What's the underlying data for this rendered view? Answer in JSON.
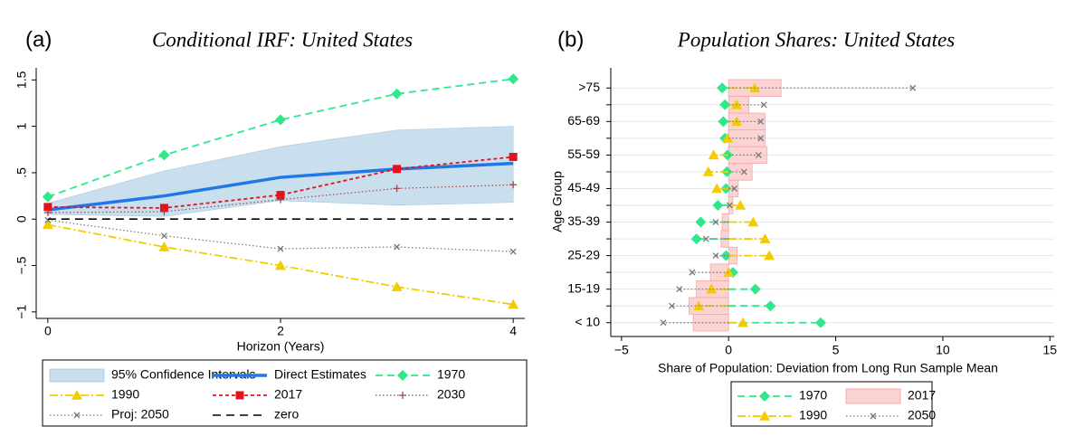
{
  "chart_data": [
    {
      "type": "line",
      "panel": "(a)",
      "title": "Conditional IRF: United States",
      "xlabel": "Horizon (Years)",
      "x": [
        0,
        1,
        2,
        3,
        4
      ],
      "xlim": [
        -0.1,
        4.1
      ],
      "xticks": [
        0,
        2,
        4
      ],
      "ylim": [
        -1.07,
        1.63
      ],
      "yticks": [
        {
          "value": -1,
          "label": "−1"
        },
        {
          "value": -0.5,
          "label": "−.5"
        },
        0,
        {
          "value": 0.5,
          "label": ".5"
        },
        1,
        1.5
      ],
      "band": {
        "name": "95% Confidence Intervals",
        "color": "#c9dfee",
        "lower": [
          0.05,
          0.03,
          0.2,
          0.15,
          0.18
        ],
        "upper": [
          0.17,
          0.52,
          0.78,
          0.96,
          1.0
        ]
      },
      "series": [
        {
          "name": "Direct Estimates",
          "color": "#1f77e8",
          "dash": "solid",
          "marker": "none",
          "values": [
            0.1,
            0.25,
            0.45,
            0.54,
            0.6
          ]
        },
        {
          "name": "1970",
          "color": "#2ee88a",
          "dash": "dash",
          "marker": "diamond",
          "values": [
            0.24,
            0.69,
            1.07,
            1.35,
            1.51
          ]
        },
        {
          "name": "1990",
          "color": "#f2cc00",
          "dash": "dashdot",
          "marker": "triangle",
          "values": [
            -0.06,
            -0.3,
            -0.5,
            -0.73,
            -0.92
          ]
        },
        {
          "name": "2017",
          "color": "#e3121b",
          "dash": "shortdash",
          "marker": "square",
          "values": [
            0.13,
            0.12,
            0.26,
            0.54,
            0.67
          ]
        },
        {
          "name": "2030",
          "color": "#9b4a4a",
          "dash": "dot",
          "marker": "plus",
          "values": [
            0.07,
            0.08,
            0.21,
            0.33,
            0.37
          ]
        },
        {
          "name": "Proj: 2050",
          "color": "#777777",
          "dash": "dot",
          "marker": "x",
          "values": [
            -0.01,
            -0.18,
            -0.32,
            -0.3,
            -0.35
          ]
        },
        {
          "name": "zero",
          "color": "#000000",
          "dash": "longdash",
          "marker": "none",
          "values": [
            0,
            0,
            0,
            0,
            0
          ]
        }
      ]
    },
    {
      "type": "dot",
      "panel": "(b)",
      "title": "Population Shares: United States",
      "xlabel": "Share of Population: Deviation from Long Run Sample Mean",
      "ylabel": "Age Group",
      "categories": [
        "< 10",
        null,
        "15-19",
        null,
        "25-29",
        null,
        "35-39",
        null,
        "45-49",
        null,
        "55-59",
        null,
        "65-69",
        null,
        ">75"
      ],
      "xlim": [
        -5.5,
        15.2
      ],
      "xticks": [
        {
          "value": -5,
          "label": "−5"
        },
        0,
        5,
        10,
        15
      ],
      "grid": true,
      "series": [
        {
          "name": "1970",
          "color": "#2ee88a",
          "dash": "dash",
          "marker": "diamond",
          "values": [
            4.3,
            1.95,
            1.25,
            0.2,
            -0.12,
            -1.5,
            -1.3,
            -0.5,
            -0.12,
            -0.08,
            -0.05,
            -0.17,
            -0.25,
            -0.17,
            -0.3
          ]
        },
        {
          "name": "1990",
          "color": "#f2cc00",
          "dash": "dashdot",
          "marker": "triangle",
          "values": [
            0.67,
            -1.4,
            -0.8,
            0,
            1.9,
            1.7,
            1.15,
            0.55,
            -0.55,
            -0.95,
            -0.7,
            -0.05,
            0.38,
            0.38,
            1.22
          ]
        },
        {
          "name": "2017",
          "color": "#f7a8a8",
          "dash": "solid",
          "marker": "bar",
          "values": [
            -1.65,
            -1.85,
            -1.5,
            -0.85,
            0.4,
            -0.35,
            -0.3,
            0.2,
            0.45,
            1.1,
            1.8,
            1.7,
            1.7,
            0.95,
            2.45
          ]
        },
        {
          "name": "2050",
          "color": "#777777",
          "dash": "dot",
          "marker": "x",
          "values": [
            -3.05,
            -2.65,
            -2.3,
            -1.7,
            -0.6,
            -1.05,
            -0.6,
            0.05,
            0.27,
            0.72,
            1.4,
            1.5,
            1.5,
            1.65,
            8.6
          ]
        }
      ]
    }
  ]
}
